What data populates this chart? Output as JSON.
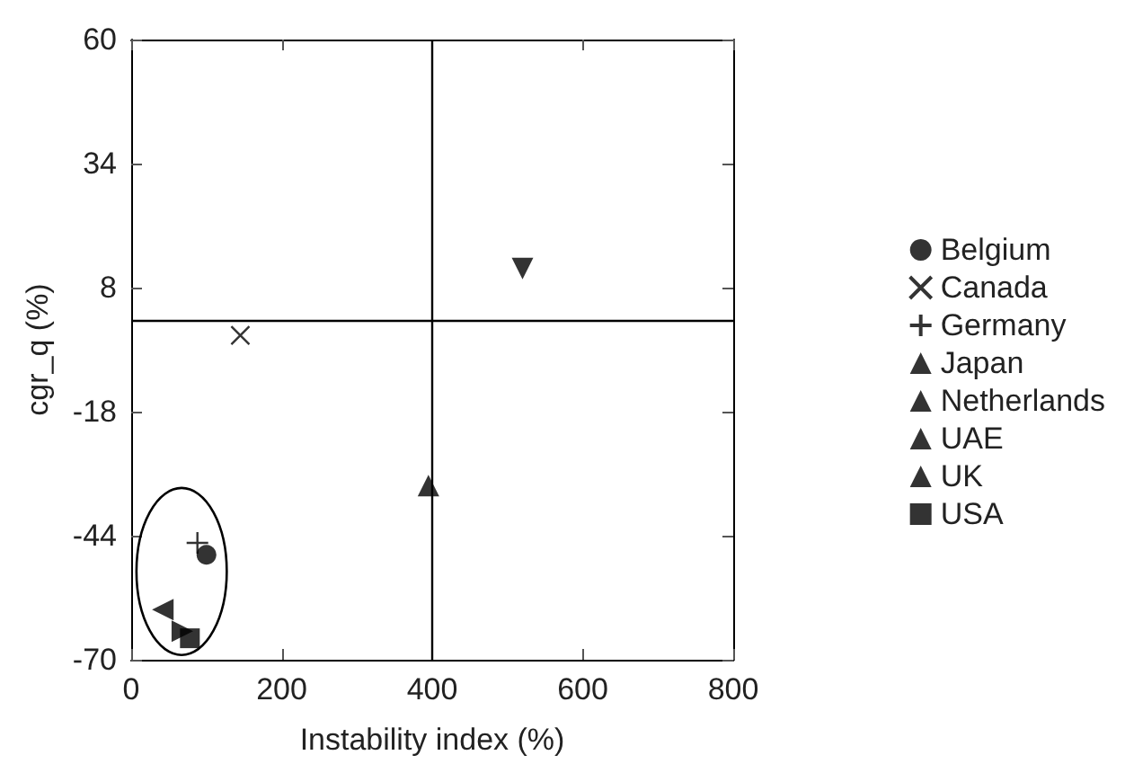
{
  "chart_data": {
    "type": "scatter",
    "xlabel": "Instability index (%)",
    "ylabel": "cgr_q (%)",
    "xlim": [
      0,
      800
    ],
    "xticks": [
      0,
      200,
      400,
      600,
      800
    ],
    "ylim": [
      -70,
      60
    ],
    "yticks": [
      -70,
      -44,
      -18,
      8,
      34,
      60
    ],
    "grid": false,
    "legend": "right",
    "color": "#000000",
    "ref_lines": [
      {
        "axis": "y",
        "value": 1,
        "color": "#000000",
        "line_style": "solid"
      },
      {
        "axis": "x",
        "value": 400,
        "color": "#000000",
        "line_style": "solid"
      }
    ],
    "series": [
      {
        "name": "Belgium",
        "marker": "circle",
        "x": [
          100
        ],
        "values": [
          -48
        ]
      },
      {
        "name": "Canada",
        "marker": "x",
        "x": [
          145
        ],
        "values": [
          -2
        ]
      },
      {
        "name": "Germany",
        "marker": "plus",
        "x": [
          88
        ],
        "values": [
          -45.5
        ]
      },
      {
        "name": "Japan",
        "marker": "triangle",
        "x": [
          395
        ],
        "values": [
          -33.5
        ]
      },
      {
        "name": "Netherlands",
        "marker": "triangle_down",
        "x": [
          520
        ],
        "values": [
          12
        ]
      },
      {
        "name": "UAE",
        "marker": "triangle_left",
        "x": [
          42
        ],
        "values": [
          -59.5
        ]
      },
      {
        "name": "UK",
        "marker": "triangle_right",
        "x": [
          68
        ],
        "values": [
          -64
        ]
      },
      {
        "name": "USA",
        "marker": "square",
        "x": [
          78
        ],
        "values": [
          -65.5
        ]
      }
    ]
  }
}
